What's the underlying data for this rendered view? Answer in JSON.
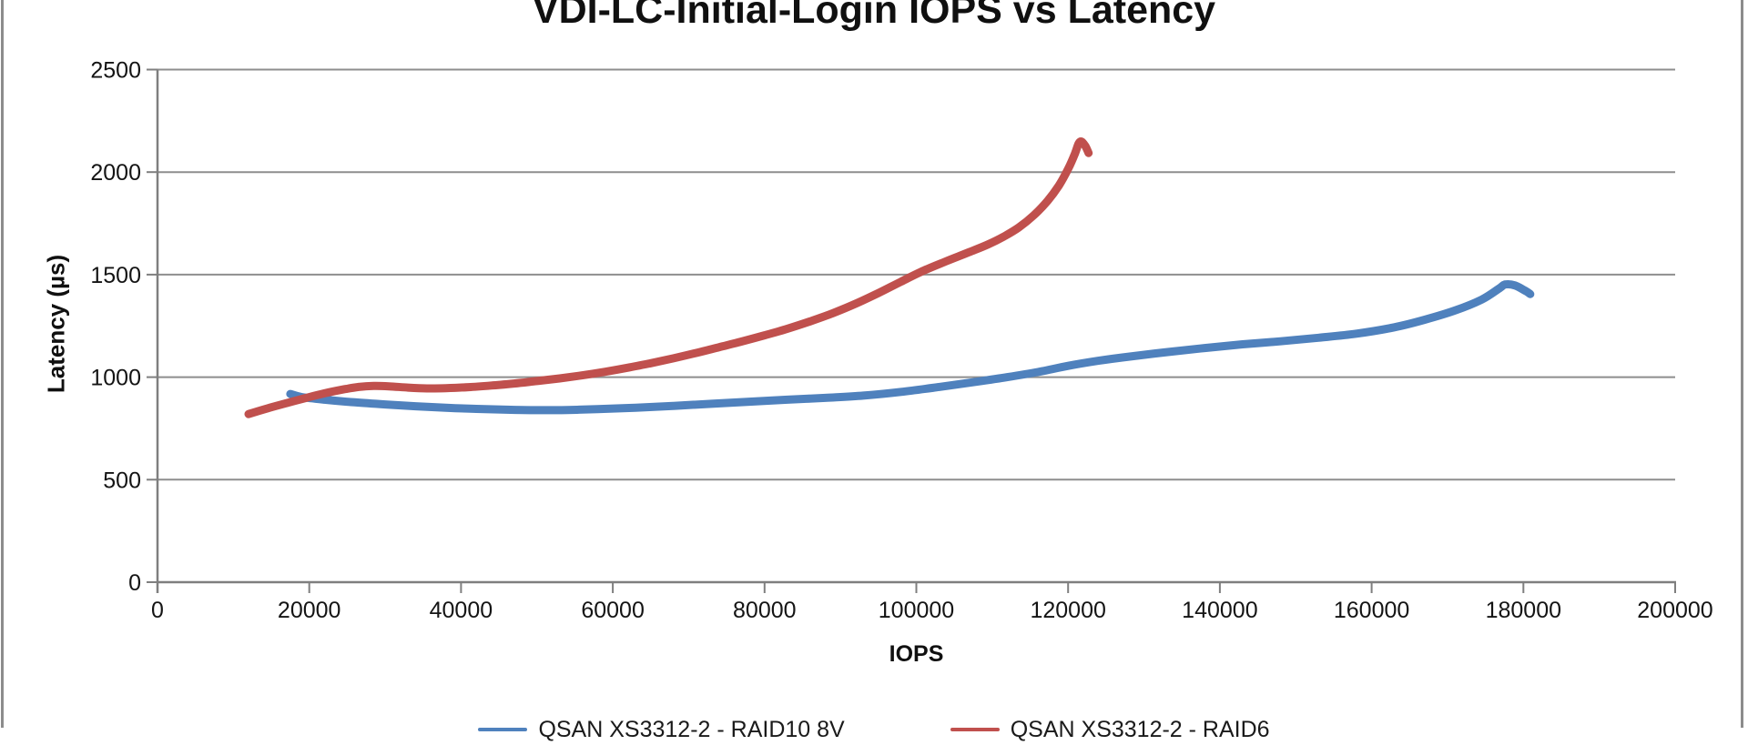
{
  "title": "VDI-LC-Initial-Login IOPS vs Latency",
  "y_axis_title": "Latency (µs)",
  "x_axis_title": "IOPS",
  "legend": {
    "items": [
      {
        "label": "QSAN XS3312-2 - RAID10 8V",
        "color": "#4F81BD"
      },
      {
        "label": "QSAN XS3312-2 - RAID6",
        "color": "#C0504D"
      }
    ]
  },
  "colors": {
    "series_blue": "#4F81BD",
    "series_red": "#C0504D",
    "gridline": "#8e8e8e",
    "axis": "#7f7f7f",
    "text": "#141414",
    "frame_border": "#8c8c8c"
  },
  "chart_data": {
    "type": "line",
    "title": "VDI-LC-Initial-Login IOPS vs Latency",
    "xlabel": "IOPS",
    "ylabel": "Latency (µs)",
    "xlim": [
      0,
      200000
    ],
    "ylim": [
      0,
      2500
    ],
    "x_ticks": [
      0,
      20000,
      40000,
      60000,
      80000,
      100000,
      120000,
      140000,
      160000,
      180000,
      200000
    ],
    "y_ticks": [
      0,
      500,
      1000,
      1500,
      2000,
      2500
    ],
    "grid": "horizontal",
    "legend_position": "bottom",
    "series": [
      {
        "name": "QSAN XS3312-2 - RAID10 8V",
        "color": "#4F81BD",
        "points": [
          [
            17500,
            918
          ],
          [
            19000,
            903
          ],
          [
            22000,
            890
          ],
          [
            26000,
            877
          ],
          [
            30000,
            867
          ],
          [
            34000,
            858
          ],
          [
            38000,
            851
          ],
          [
            42000,
            845
          ],
          [
            46000,
            841
          ],
          [
            50000,
            839
          ],
          [
            54000,
            840
          ],
          [
            58000,
            844
          ],
          [
            63000,
            851
          ],
          [
            68000,
            860
          ],
          [
            73000,
            870
          ],
          [
            78000,
            880
          ],
          [
            83000,
            890
          ],
          [
            88000,
            899
          ],
          [
            93000,
            910
          ],
          [
            98000,
            928
          ],
          [
            103000,
            952
          ],
          [
            108000,
            978
          ],
          [
            112000,
            1000
          ],
          [
            116000,
            1025
          ],
          [
            120000,
            1055
          ],
          [
            124000,
            1080
          ],
          [
            128000,
            1100
          ],
          [
            133000,
            1122
          ],
          [
            138000,
            1142
          ],
          [
            143000,
            1160
          ],
          [
            148000,
            1175
          ],
          [
            153000,
            1192
          ],
          [
            158000,
            1212
          ],
          [
            163000,
            1243
          ],
          [
            167000,
            1280
          ],
          [
            171000,
            1325
          ],
          [
            174500,
            1378
          ],
          [
            176800,
            1432
          ],
          [
            177600,
            1452
          ],
          [
            178900,
            1447
          ],
          [
            180300,
            1420
          ],
          [
            180900,
            1405
          ]
        ]
      },
      {
        "name": "QSAN XS3312-2 - RAID6",
        "color": "#C0504D",
        "points": [
          [
            12000,
            820
          ],
          [
            14500,
            848
          ],
          [
            17000,
            873
          ],
          [
            19500,
            898
          ],
          [
            22000,
            921
          ],
          [
            24500,
            940
          ],
          [
            26500,
            952
          ],
          [
            28500,
            957
          ],
          [
            30500,
            955
          ],
          [
            33000,
            949
          ],
          [
            35500,
            945
          ],
          [
            38000,
            946
          ],
          [
            41000,
            951
          ],
          [
            44000,
            959
          ],
          [
            47000,
            969
          ],
          [
            50000,
            981
          ],
          [
            53000,
            994
          ],
          [
            56000,
            1009
          ],
          [
            59000,
            1026
          ],
          [
            62000,
            1046
          ],
          [
            65000,
            1068
          ],
          [
            68000,
            1092
          ],
          [
            71000,
            1118
          ],
          [
            74000,
            1146
          ],
          [
            77000,
            1174
          ],
          [
            80000,
            1204
          ],
          [
            83000,
            1236
          ],
          [
            86000,
            1272
          ],
          [
            89000,
            1312
          ],
          [
            92000,
            1358
          ],
          [
            95000,
            1410
          ],
          [
            98000,
            1466
          ],
          [
            101000,
            1520
          ],
          [
            104000,
            1566
          ],
          [
            107000,
            1610
          ],
          [
            109500,
            1648
          ],
          [
            111500,
            1685
          ],
          [
            113500,
            1730
          ],
          [
            115500,
            1790
          ],
          [
            117300,
            1860
          ],
          [
            118800,
            1935
          ],
          [
            120000,
            2015
          ],
          [
            120900,
            2090
          ],
          [
            121400,
            2140
          ],
          [
            121800,
            2148
          ],
          [
            122300,
            2125
          ],
          [
            122700,
            2093
          ]
        ]
      }
    ]
  }
}
